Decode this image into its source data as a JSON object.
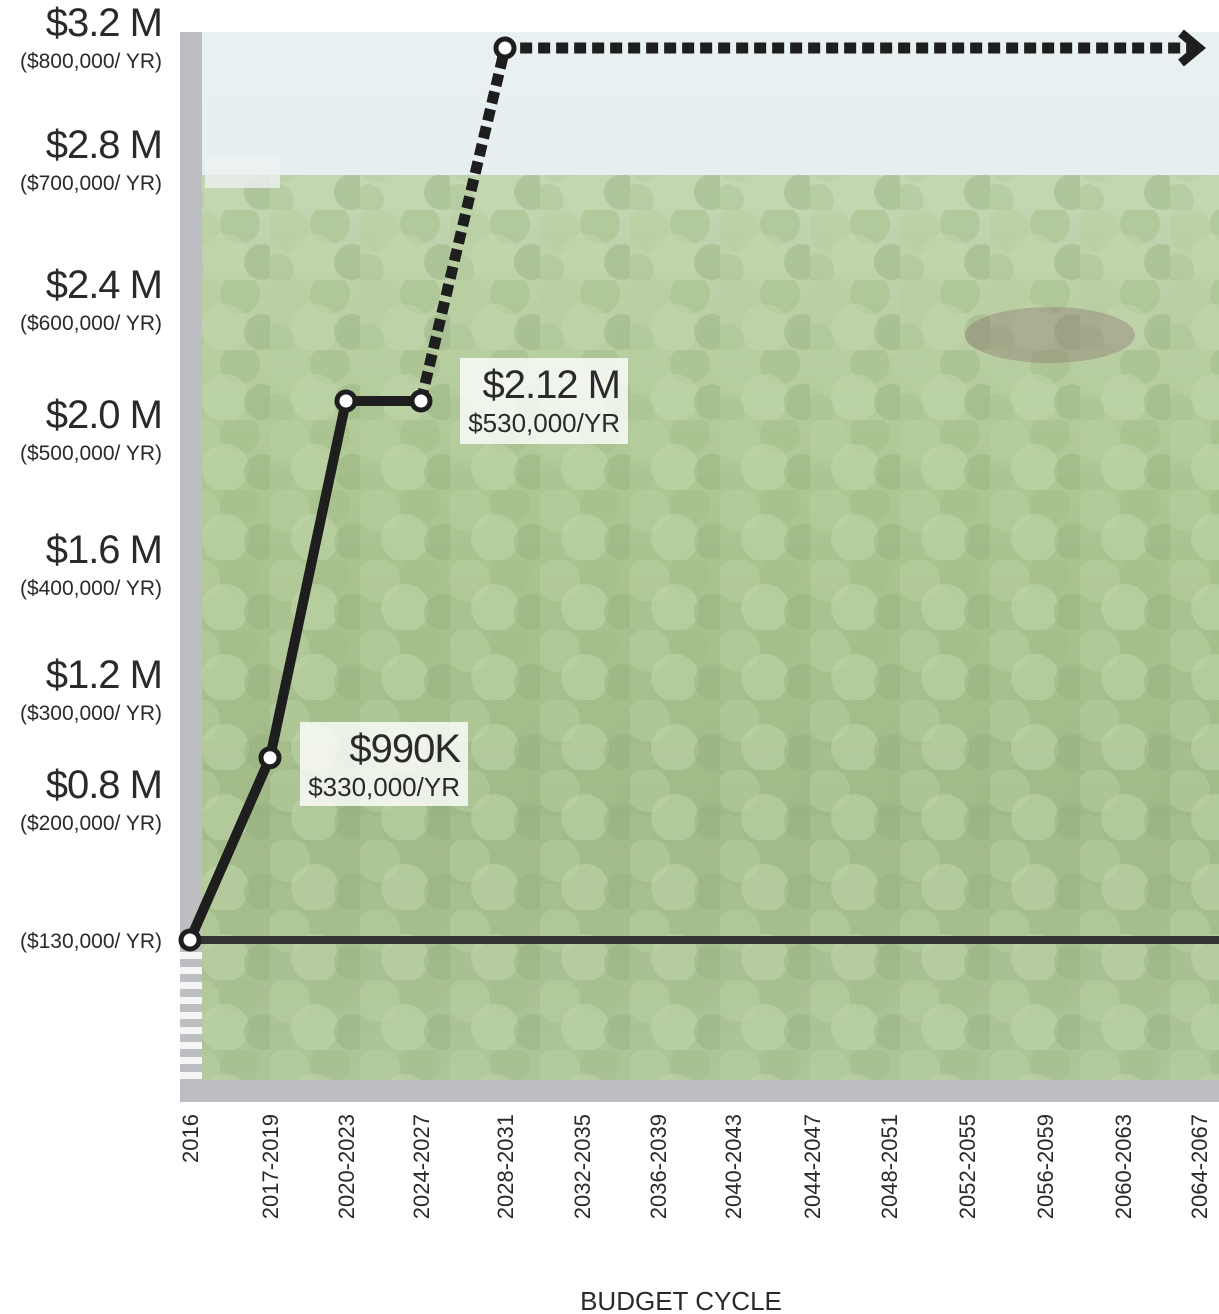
{
  "chart_data": {
    "type": "line",
    "xlabel": "BUDGET CYCLE",
    "ylabel": "",
    "title": "",
    "ylim": [
      0,
      3.2
    ],
    "categories": [
      "2016",
      "2017-2019",
      "2020-2023",
      "2024-2027",
      "2028-2031",
      "2032-2035",
      "2036-2039",
      "2040-2043",
      "2044-2047",
      "2048-2051",
      "2052-2055",
      "2056-2059",
      "2060-2063",
      "2064-2067"
    ],
    "y_ticks": [
      {
        "value": 3.2,
        "label": "$3.2 M",
        "sublabel": "($800,000/ YR)"
      },
      {
        "value": 2.8,
        "label": "$2.8 M",
        "sublabel": "($700,000/ YR)"
      },
      {
        "value": 2.4,
        "label": "$2.4 M",
        "sublabel": "($600,000/ YR)"
      },
      {
        "value": 2.0,
        "label": "$2.0 M",
        "sublabel": "($500,000/ YR)"
      },
      {
        "value": 1.6,
        "label": "$1.6 M",
        "sublabel": "($400,000/ YR)"
      },
      {
        "value": 1.2,
        "label": "$1.2 M",
        "sublabel": "($300,000/ YR)"
      },
      {
        "value": 0.8,
        "label": "$0.8 M",
        "sublabel": "($200,000/ YR)"
      },
      {
        "value": 0.13,
        "label": "",
        "sublabel": "($130,000/ YR)"
      }
    ],
    "series": [
      {
        "style": "solid",
        "points": [
          {
            "x": "2016",
            "y": 0.13
          },
          {
            "x": "2017-2019",
            "y": 0.99
          },
          {
            "x": "2020-2023",
            "y": 2.12
          },
          {
            "x": "2024-2027",
            "y": 2.12
          }
        ]
      },
      {
        "style": "dashed",
        "points": [
          {
            "x": "2024-2027",
            "y": 2.12
          },
          {
            "x": "2028-2031",
            "y": 3.2
          },
          {
            "x": "2064-2067",
            "y": 3.2
          }
        ]
      },
      {
        "style": "baseline",
        "points": [
          {
            "x": "2016",
            "y": 0.13
          },
          {
            "x": "2064-2067",
            "y": 0.13
          }
        ]
      }
    ],
    "annotations": [
      {
        "x": "2017-2019",
        "y": 0.99,
        "label": "$990K",
        "sublabel": "$330,000/YR"
      },
      {
        "x": "2024-2027",
        "y": 2.12,
        "label": "$2.12 M",
        "sublabel": "$530,000/YR"
      }
    ],
    "grid": false,
    "legend": "none",
    "colors": {
      "line": "#1e1e1e",
      "axis": "#bdbec2",
      "background_sky": "#e6eef0",
      "foliage": "#8fae6a",
      "text": "#2a2a2a"
    }
  }
}
